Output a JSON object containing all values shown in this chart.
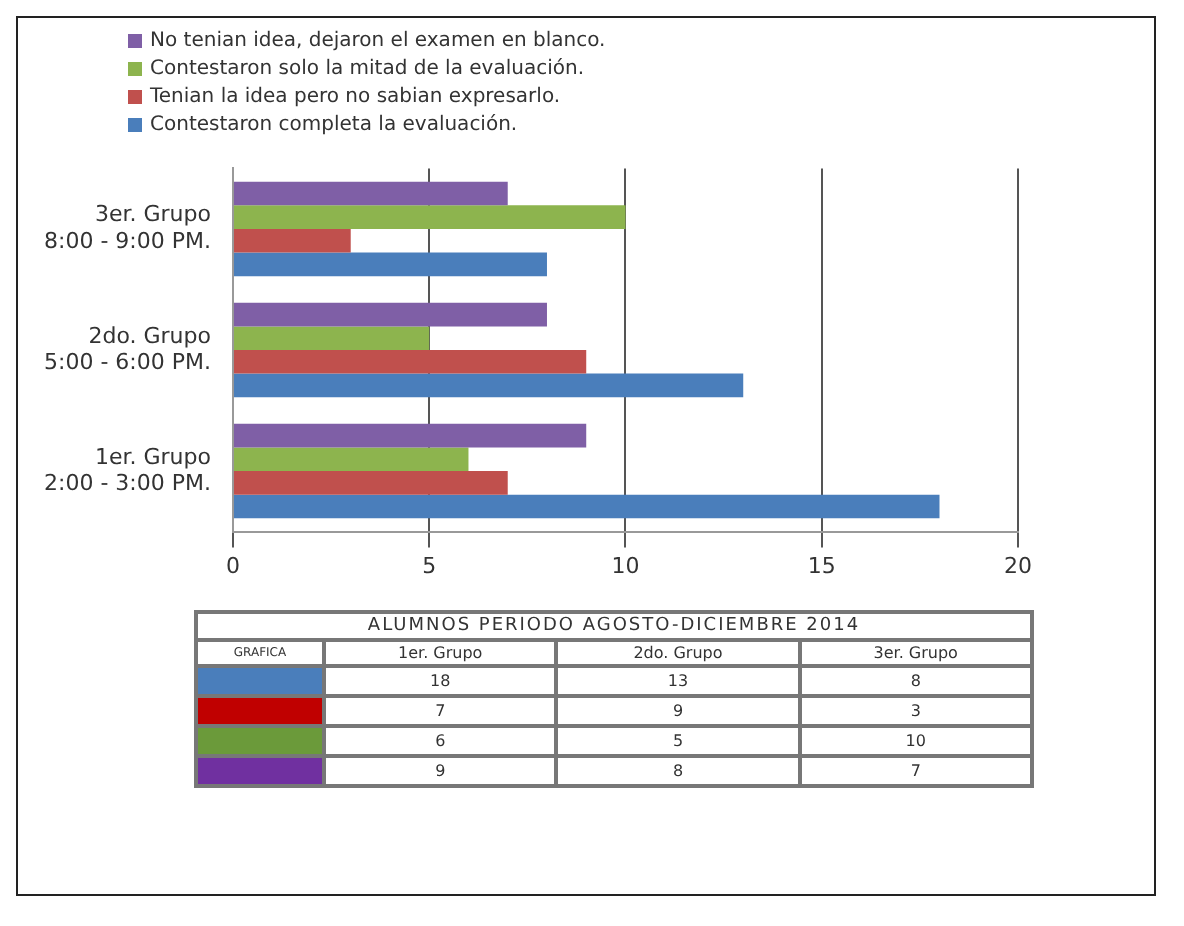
{
  "chart_data": [
    {
      "type": "bar",
      "orientation": "horizontal",
      "categories": [
        "3er. Grupo\n8:00 - 9:00 PM.",
        "2do. Grupo\n5:00 - 6:00 PM.",
        "1er. Grupo\n2:00 - 3:00 PM."
      ],
      "series": [
        {
          "name": "No tenian idea, dejaron el examen en blanco.",
          "color": "#7f5fa6",
          "values": [
            7,
            8,
            9
          ]
        },
        {
          "name": "Contestaron solo la mitad de la evaluación.",
          "color": "#8db44e",
          "values": [
            10,
            5,
            6
          ]
        },
        {
          "name": "Tenian la idea pero no sabian expresarlo.",
          "color": "#c0504d",
          "values": [
            3,
            9,
            7
          ]
        },
        {
          "name": "Contestaron completa la evaluación.",
          "color": "#4a7ebb",
          "values": [
            8,
            13,
            18
          ]
        }
      ],
      "xlim": [
        0,
        20
      ],
      "xticks": [
        0,
        5,
        10,
        15,
        20
      ],
      "grid": "x",
      "legend": "top"
    },
    {
      "type": "other",
      "title": "ALUMNOS PERIODO AGOSTO-DICIEMBRE 2014",
      "categories": [
        "1er. Grupo",
        "2do. Grupo",
        "3er. Grupo"
      ],
      "series": [
        {
          "color": "#4a7ebb",
          "values": [
            18,
            13,
            8
          ]
        },
        {
          "color": "#c00000",
          "values": [
            7,
            9,
            3
          ]
        },
        {
          "color": "#6b9a3a",
          "values": [
            6,
            5,
            10
          ]
        },
        {
          "color": "#7030a0",
          "values": [
            9,
            8,
            7
          ]
        }
      ],
      "data_labels": true,
      "annotations": [
        "GRAFICA"
      ]
    }
  ]
}
